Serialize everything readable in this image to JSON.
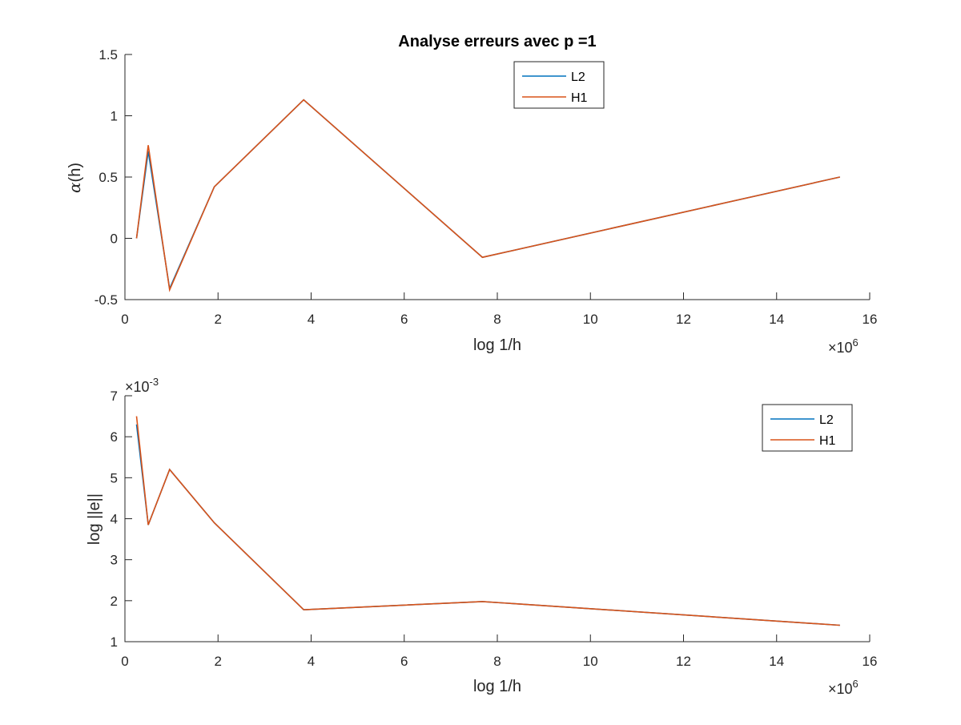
{
  "figure": {
    "title": "Analyse erreurs avec p =1"
  },
  "chart_data": [
    {
      "type": "line",
      "title": "Analyse erreurs avec p =1",
      "xlabel": "log 1/h",
      "ylabel_main": "α",
      "ylabel_rest": "(h)",
      "x_exponent_base": "×10",
      "x_exponent_power": "6",
      "xlim": [
        0,
        16000000
      ],
      "ylim": [
        -0.5,
        1.5
      ],
      "x_ticks": [
        0,
        2000000,
        4000000,
        6000000,
        8000000,
        10000000,
        12000000,
        14000000,
        16000000
      ],
      "x_tick_labels": [
        "0",
        "2",
        "4",
        "6",
        "8",
        "10",
        "12",
        "14",
        "16"
      ],
      "y_ticks": [
        -0.5,
        0,
        0.5,
        1,
        1.5
      ],
      "y_tick_labels": [
        "-0.5",
        "0",
        "0.5",
        "1",
        "1.5"
      ],
      "legend_position": "top-center",
      "grid": false,
      "x": [
        250000,
        500000,
        960000,
        1920000,
        3840000,
        7680000,
        15360000
      ],
      "series": [
        {
          "name": "L2",
          "color": "#0072BD",
          "values": [
            0,
            0.71,
            -0.41,
            0.42,
            1.13,
            -0.155,
            0.5
          ]
        },
        {
          "name": "H1",
          "color": "#D95319",
          "values": [
            0,
            0.76,
            -0.42,
            0.42,
            1.13,
            -0.155,
            0.5
          ]
        }
      ]
    },
    {
      "type": "line",
      "title": "",
      "xlabel": "log 1/h",
      "ylabel": "log ||e||",
      "x_exponent_base": "×10",
      "x_exponent_power": "6",
      "y_exponent_base": "×10",
      "y_exponent_power": "-3",
      "xlim": [
        0,
        16000000
      ],
      "ylim": [
        0.001,
        0.007
      ],
      "x_ticks": [
        0,
        2000000,
        4000000,
        6000000,
        8000000,
        10000000,
        12000000,
        14000000,
        16000000
      ],
      "x_tick_labels": [
        "0",
        "2",
        "4",
        "6",
        "8",
        "10",
        "12",
        "14",
        "16"
      ],
      "y_ticks": [
        0.001,
        0.002,
        0.003,
        0.004,
        0.005,
        0.006,
        0.007
      ],
      "y_tick_labels": [
        "1",
        "2",
        "3",
        "4",
        "5",
        "6",
        "7"
      ],
      "legend_position": "top-right",
      "grid": false,
      "x": [
        250000,
        500000,
        960000,
        1920000,
        3840000,
        7680000,
        15360000
      ],
      "series": [
        {
          "name": "L2",
          "color": "#0072BD",
          "values": [
            0.0063,
            0.00385,
            0.0052,
            0.0039,
            0.00178,
            0.00198,
            0.0014
          ]
        },
        {
          "name": "H1",
          "color": "#D95319",
          "values": [
            0.0065,
            0.00385,
            0.0052,
            0.0039,
            0.00178,
            0.00198,
            0.0014
          ]
        }
      ]
    }
  ]
}
